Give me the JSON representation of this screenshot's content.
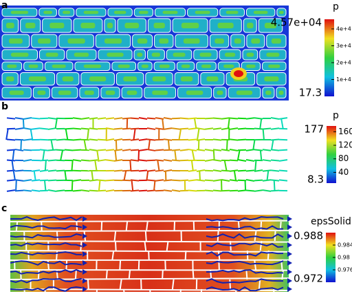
{
  "panels": [
    {
      "label": "a",
      "colorbar": {
        "title": "p",
        "range": [
          17.3,
          {
            "value": 45700,
            "label": "4.57e+04"
          }
        ],
        "ticks": [
          {
            "value": 10000,
            "label": "1e+4"
          },
          {
            "value": 20000,
            "label": "2e+4"
          },
          {
            "value": 30000,
            "label": "3e+4"
          },
          {
            "value": 40000,
            "label": "4e+4"
          }
        ]
      }
    },
    {
      "label": "b",
      "colorbar": {
        "title": "p",
        "range": [
          8.3,
          177
        ],
        "ticks": [
          40,
          80,
          120,
          160
        ]
      }
    },
    {
      "label": "c",
      "colorbar": {
        "title": "epsSolid",
        "range": [
          0.972,
          0.988
        ],
        "ticks": [
          0.976,
          0.98,
          0.984
        ]
      }
    }
  ]
}
